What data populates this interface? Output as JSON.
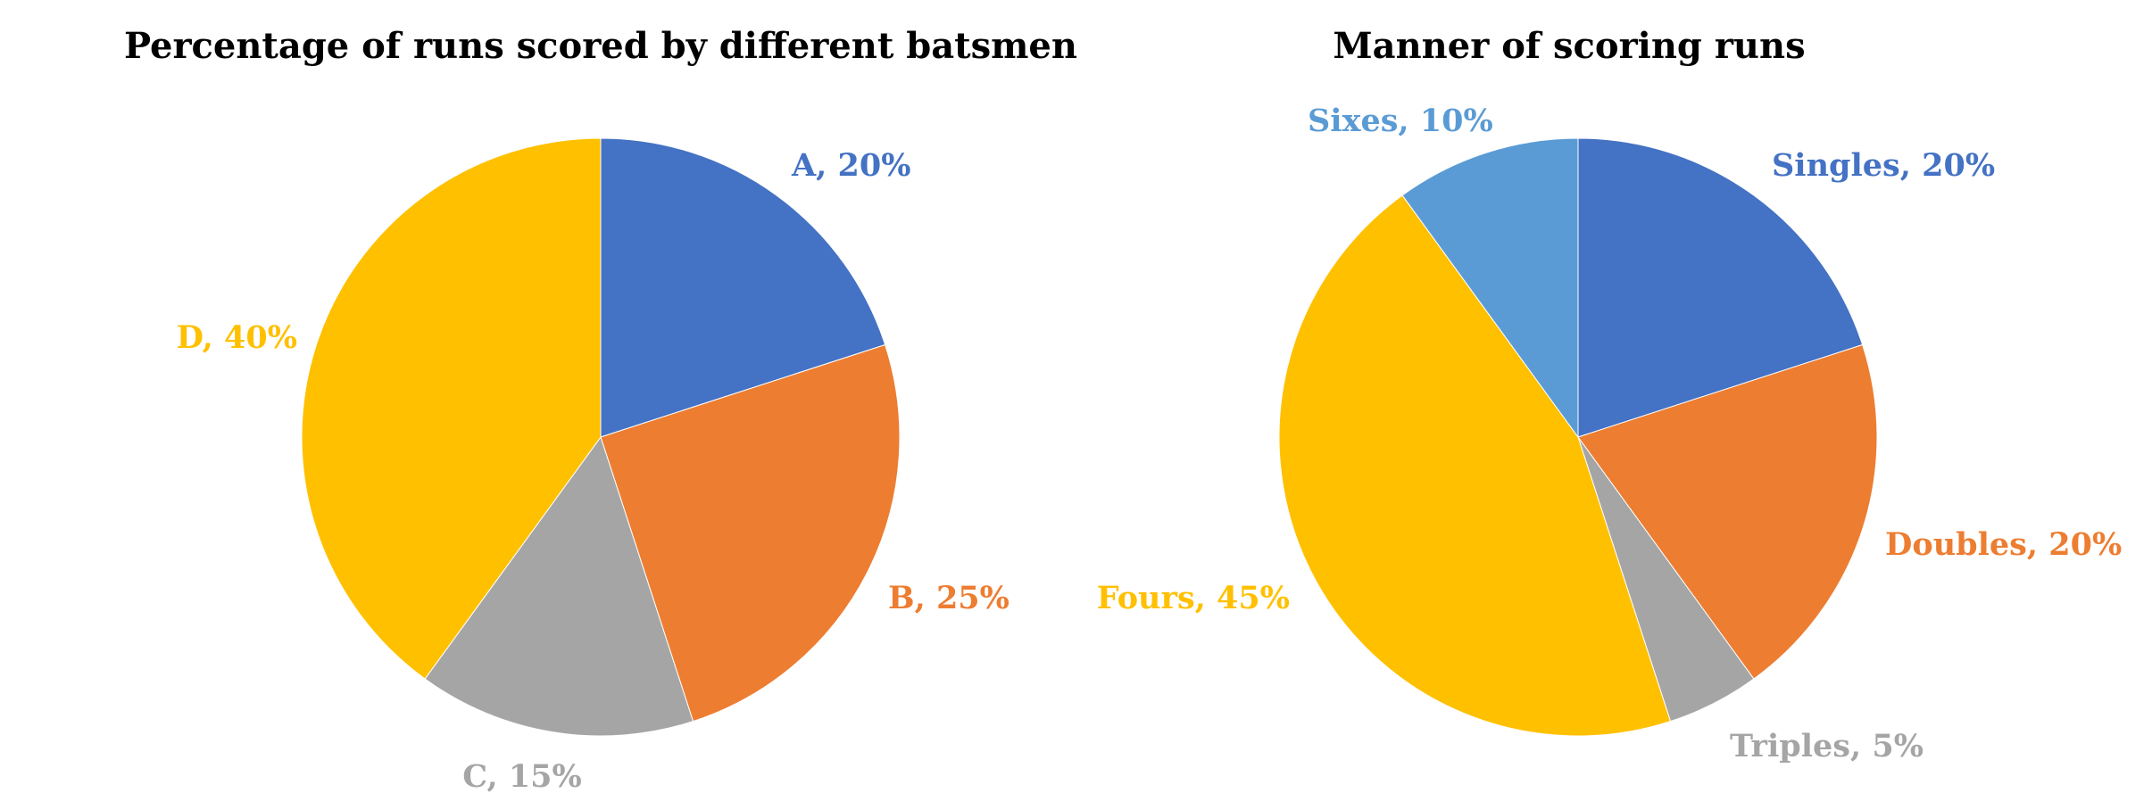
{
  "chart_data": [
    {
      "type": "pie",
      "title": "Percentage of runs scored by different batsmen",
      "slices": [
        {
          "label": "A",
          "value": 20,
          "color": "#4472C4"
        },
        {
          "label": "B",
          "value": 25,
          "color": "#ED7D31"
        },
        {
          "label": "C",
          "value": 15,
          "color": "#A5A5A5"
        },
        {
          "label": "D",
          "value": 40,
          "color": "#FFC000"
        }
      ],
      "value_suffix": "%",
      "label_format": "{label}, {value}%"
    },
    {
      "type": "pie",
      "title": "Manner of scoring runs",
      "slices": [
        {
          "label": "Singles",
          "value": 20,
          "color": "#4472C4"
        },
        {
          "label": "Doubles",
          "value": 20,
          "color": "#ED7D31"
        },
        {
          "label": "Triples",
          "value": 5,
          "color": "#A5A5A5"
        },
        {
          "label": "Fours",
          "value": 45,
          "color": "#FFC000"
        },
        {
          "label": "Sixes",
          "value": 10,
          "color": "#5B9BD5"
        }
      ],
      "value_suffix": "%",
      "label_format": "{label}, {value}%"
    }
  ]
}
